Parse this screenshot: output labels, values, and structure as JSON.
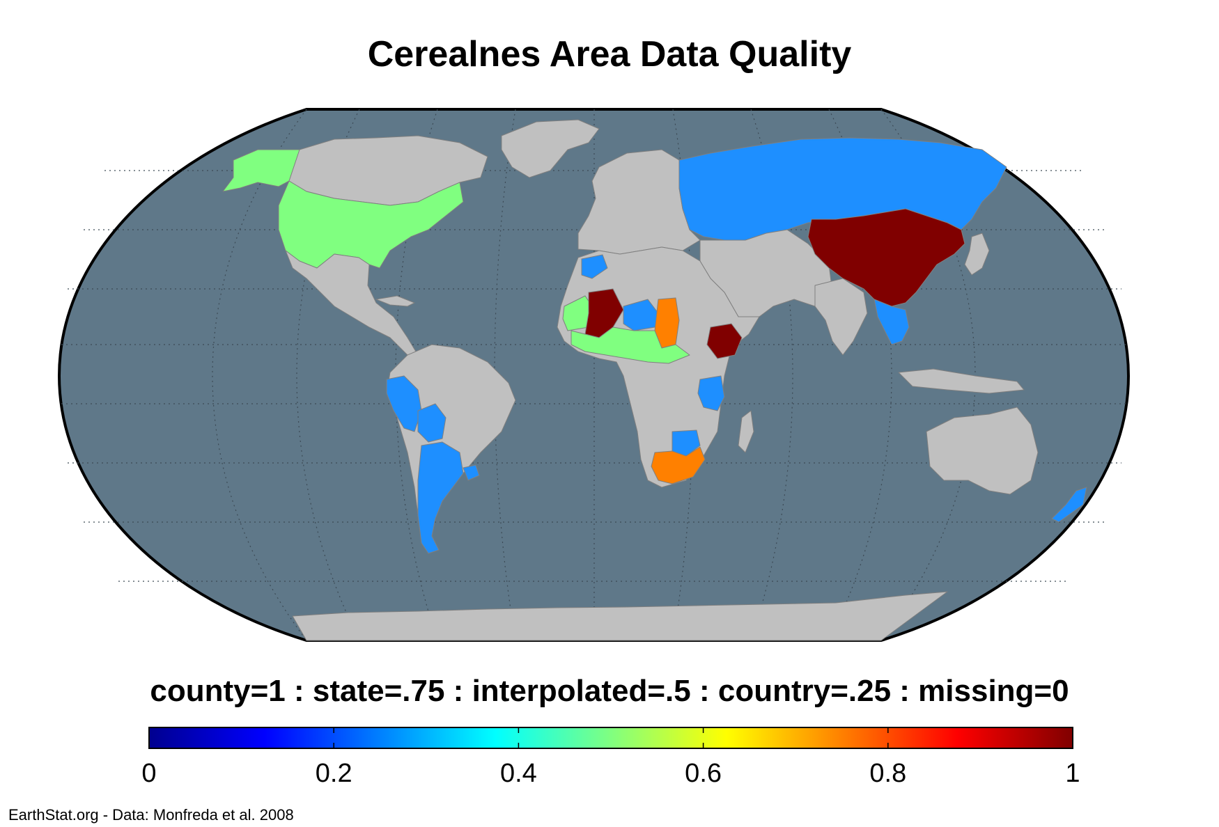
{
  "title": "Cerealnes Area Data Quality",
  "legend_caption": "county=1 : state=.75 : interpolated=.5 : country=.25 : missing=0",
  "colorbar": {
    "ticks": [
      {
        "value": 0,
        "label": "0"
      },
      {
        "value": 0.2,
        "label": "0.2"
      },
      {
        "value": 0.4,
        "label": "0.4"
      },
      {
        "value": 0.6,
        "label": "0.6"
      },
      {
        "value": 0.8,
        "label": "0.8"
      },
      {
        "value": 1,
        "label": "1"
      }
    ],
    "stops": [
      "#00008f",
      "#0000ff",
      "#0080ff",
      "#00ffff",
      "#80ff80",
      "#ffff00",
      "#ff8000",
      "#ff0000",
      "#800000"
    ]
  },
  "credit": "EarthStat.org - Data: Monfreda et al. 2008",
  "colors": {
    "ocean": "#5f7889",
    "land_missing": "#c0c0c0",
    "county": "#800000",
    "state": "#ff8000",
    "interpolated": "#80ff80",
    "country": "#1e8fff",
    "border": "#7f7f7f",
    "grid": "#3c4a55"
  },
  "regions": [
    {
      "name": "Canada",
      "level": "missing"
    },
    {
      "name": "Greenland",
      "level": "missing"
    },
    {
      "name": "Alaska",
      "level": "interpolated"
    },
    {
      "name": "United States",
      "level": "interpolated"
    },
    {
      "name": "Mexico",
      "level": "missing"
    },
    {
      "name": "Central America",
      "level": "missing"
    },
    {
      "name": "South America",
      "level": "missing"
    },
    {
      "name": "Peru",
      "level": "country"
    },
    {
      "name": "Bolivia",
      "level": "country"
    },
    {
      "name": "Argentina",
      "level": "country"
    },
    {
      "name": "Uruguay",
      "level": "country"
    },
    {
      "name": "Europe",
      "level": "missing"
    },
    {
      "name": "Russia",
      "level": "country"
    },
    {
      "name": "Africa",
      "level": "missing"
    },
    {
      "name": "Morocco",
      "level": "country"
    },
    {
      "name": "Mali",
      "level": "county"
    },
    {
      "name": "Mauritania",
      "level": "interpolated"
    },
    {
      "name": "Niger",
      "level": "country"
    },
    {
      "name": "Chad",
      "level": "state"
    },
    {
      "name": "Nigeria",
      "level": "interpolated"
    },
    {
      "name": "Ethiopia",
      "level": "county"
    },
    {
      "name": "Tanzania",
      "level": "country"
    },
    {
      "name": "Zimbabwe",
      "level": "country"
    },
    {
      "name": "South Africa",
      "level": "state"
    },
    {
      "name": "China",
      "level": "county"
    },
    {
      "name": "Asia",
      "level": "missing"
    },
    {
      "name": "Southeast Asia",
      "level": "country"
    },
    {
      "name": "Australia",
      "level": "missing"
    },
    {
      "name": "New Zealand",
      "level": "country"
    },
    {
      "name": "Antarctica",
      "level": "missing"
    }
  ]
}
